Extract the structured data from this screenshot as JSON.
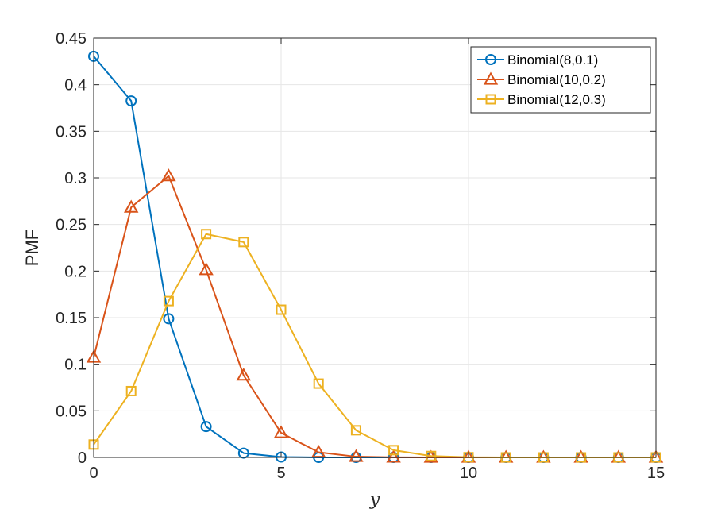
{
  "chart_data": {
    "type": "line",
    "title": "",
    "xlabel": "y",
    "ylabel": "PMF",
    "xlim": [
      0,
      15
    ],
    "ylim": [
      0,
      0.45
    ],
    "xticks": [
      0,
      5,
      10,
      15
    ],
    "xtick_labels": [
      "0",
      "5",
      "10",
      "15"
    ],
    "yticks": [
      0,
      0.05,
      0.1,
      0.15,
      0.2,
      0.25,
      0.3,
      0.35,
      0.4,
      0.45
    ],
    "ytick_labels": [
      "0",
      "0.05",
      "0.1",
      "0.15",
      "0.2",
      "0.25",
      "0.3",
      "0.35",
      "0.4",
      "0.45"
    ],
    "grid": true,
    "legend_position": "top-right",
    "x": [
      0,
      1,
      2,
      3,
      4,
      5,
      6,
      7,
      8,
      9,
      10,
      11,
      12,
      13,
      14,
      15
    ],
    "series": [
      {
        "name": "Binomial(8,0.1)",
        "color": "#0072BD",
        "marker": "circle",
        "values": [
          0.4305,
          0.3826,
          0.1488,
          0.0331,
          0.0046,
          0.0004,
          0.0,
          0.0,
          0.0,
          0.0,
          0.0,
          0.0,
          0.0,
          0.0,
          0.0,
          0.0
        ]
      },
      {
        "name": "Binomial(10,0.2)",
        "color": "#D95319",
        "marker": "triangle",
        "values": [
          0.1074,
          0.2684,
          0.302,
          0.2013,
          0.0881,
          0.0264,
          0.0055,
          0.0008,
          0.0001,
          0.0,
          0.0,
          0.0,
          0.0,
          0.0,
          0.0,
          0.0
        ]
      },
      {
        "name": "Binomial(12,0.3)",
        "color": "#EDB120",
        "marker": "square",
        "values": [
          0.0138,
          0.0712,
          0.1678,
          0.2397,
          0.2311,
          0.1585,
          0.0792,
          0.0291,
          0.0078,
          0.0015,
          0.0002,
          0.0,
          0.0,
          0.0,
          0.0,
          0.0
        ]
      }
    ]
  }
}
